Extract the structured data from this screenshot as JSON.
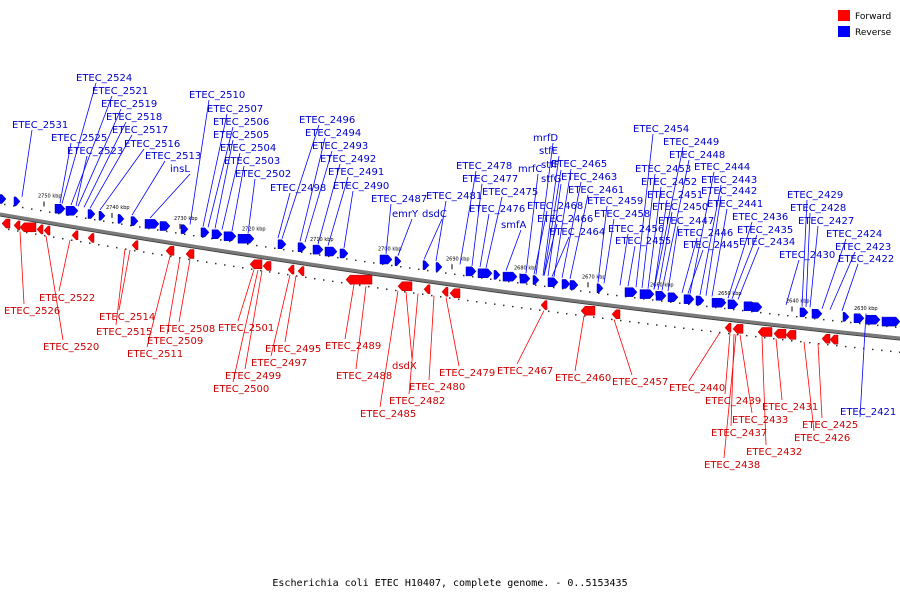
{
  "legend": {
    "forward": {
      "label": "Forward",
      "color": "#ff0000"
    },
    "reverse": {
      "label": "Reverse",
      "color": "#0000ff"
    }
  },
  "caption": "Escherichia coli ETEC H10407, complete genome. - 0..5153435",
  "ticks": [
    "2750 kbp",
    "2740 kbp",
    "2730 kbp",
    "2720 kbp",
    "2710 kbp",
    "2700 kbp",
    "2690 kbp",
    "2680 kbp",
    "2670 kbp",
    "2660 kbp",
    "2650 kbp",
    "2640 kbp",
    "2630 kbp"
  ],
  "reverse_labels": [
    "ETEC_2524",
    "ETEC_2521",
    "ETEC_2519",
    "ETEC_2518",
    "ETEC_2531",
    "ETEC_2517",
    "ETEC_2525",
    "ETEC_2516",
    "ETEC_2523",
    "ETEC_2513",
    "insL",
    "ETEC_2510",
    "ETEC_2507",
    "ETEC_2506",
    "ETEC_2505",
    "ETEC_2504",
    "ETEC_2503",
    "ETEC_2502",
    "ETEC_2496",
    "ETEC_2494",
    "ETEC_2493",
    "ETEC_2492",
    "ETEC_2491",
    "ETEC_2490",
    "ETEC_2498",
    "ETEC_2487",
    "emrY",
    "dsdC",
    "ETEC_2481",
    "ETEC_2478",
    "ETEC_2477",
    "ETEC_2475",
    "ETEC_2476",
    "smfA",
    "mrfD",
    "stfE",
    "mrfC",
    "stfF",
    "stfG",
    "ETEC_2465",
    "ETEC_2463",
    "ETEC_2461",
    "ETEC_2468",
    "ETEC_2466",
    "ETEC_2464",
    "ETEC_2459",
    "ETEC_2458",
    "ETEC_2456",
    "ETEC_2455",
    "ETEC_2454",
    "ETEC_2449",
    "ETEC_2448",
    "ETEC_2453",
    "ETEC_2452",
    "ETEC_2451",
    "ETEC_2450",
    "ETEC_2447",
    "ETEC_2446",
    "ETEC_2445",
    "ETEC_2444",
    "ETEC_2443",
    "ETEC_2442",
    "ETEC_2441",
    "ETEC_2436",
    "ETEC_2435",
    "ETEC_2434",
    "ETEC_2429",
    "ETEC_2428",
    "ETEC_2427",
    "ETEC_2430",
    "ETEC_2424",
    "ETEC_2423",
    "ETEC_2422",
    "ETEC_2421"
  ],
  "forward_labels": [
    "ETEC_2522",
    "ETEC_2526",
    "ETEC_2520",
    "ETEC_2514",
    "ETEC_2515",
    "ETEC_2508",
    "ETEC_2509",
    "ETEC_2511",
    "ETEC_2501",
    "ETEC_2499",
    "ETEC_2500",
    "ETEC_2497",
    "ETEC_2495",
    "ETEC_2489",
    "ETEC_2488",
    "dsdX",
    "ETEC_2485",
    "ETEC_2482",
    "ETEC_2480",
    "ETEC_2479",
    "ETEC_2467",
    "ETEC_2460",
    "ETEC_2457",
    "ETEC_2440",
    "ETEC_2439",
    "ETEC_2437",
    "ETEC_2438",
    "ETEC_2433",
    "ETEC_2432",
    "ETEC_2431",
    "ETEC_2426",
    "ETEC_2425"
  ]
}
